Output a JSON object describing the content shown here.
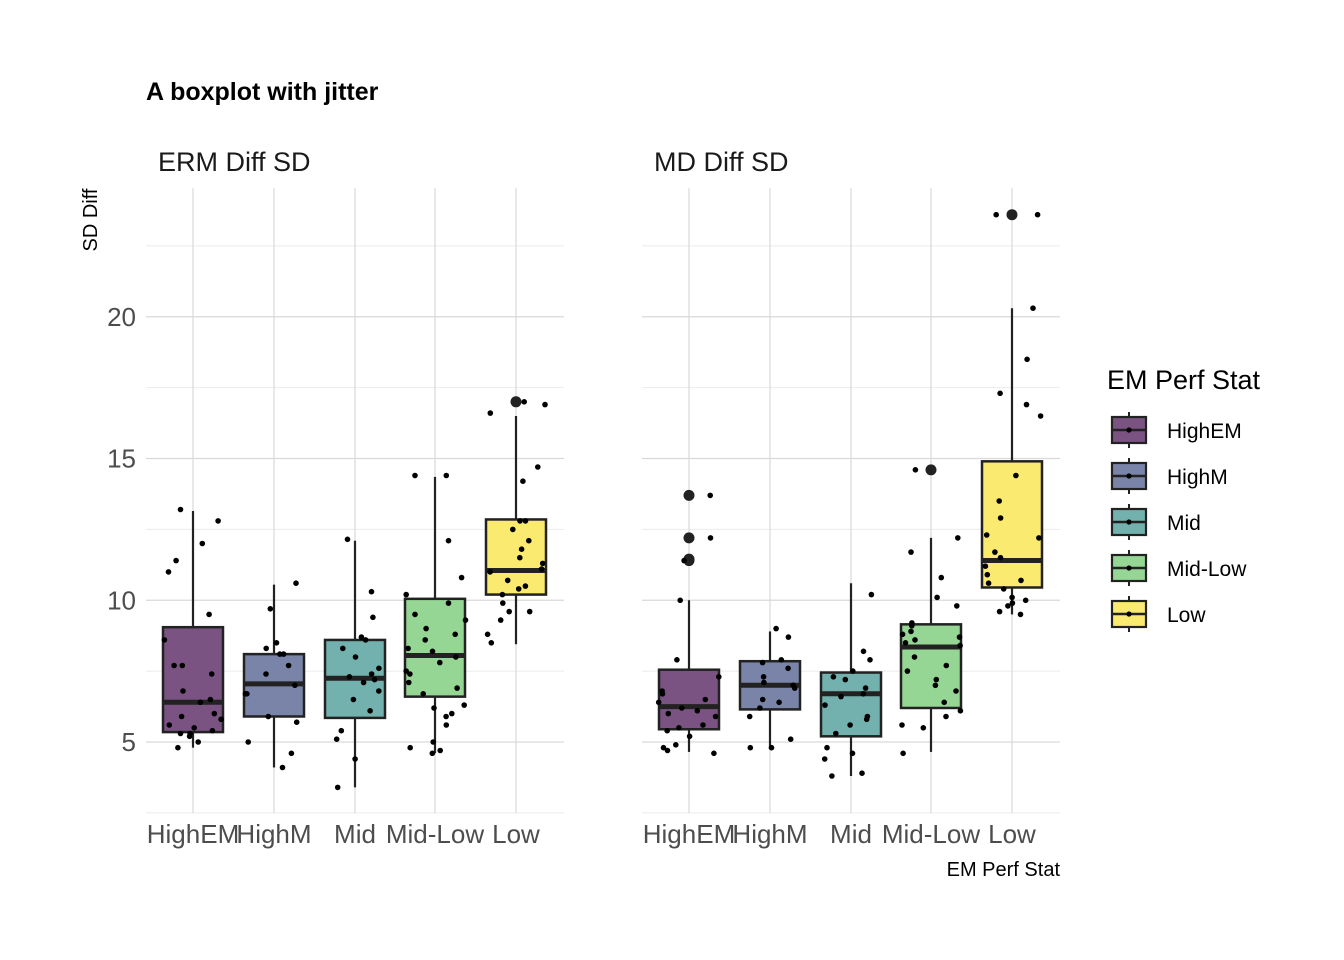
{
  "chart_data": {
    "type": "box",
    "title": "A boxplot with jitter",
    "xlabel": "EM Perf Stat",
    "ylabel": "SD Diff",
    "categories": [
      "HighEM",
      "HighM",
      "Mid",
      "Mid-Low",
      "Low"
    ],
    "y_ticks": [
      5,
      10,
      15,
      20
    ],
    "ylim": [
      2.5,
      24.6
    ],
    "grid": true,
    "legend": {
      "title": "EM Perf Stat",
      "position": "right",
      "items": [
        "HighEM",
        "HighM",
        "Mid",
        "Mid-Low",
        "Low"
      ]
    },
    "colors": {
      "HighEM": "#7A5383",
      "HighM": "#7A84A8",
      "Mid": "#72B1AD",
      "Mid-Low": "#96D695",
      "Low": "#FBEA70"
    },
    "panels": [
      {
        "strip_label": "ERM Diff SD",
        "boxes": [
          {
            "category": "HighEM",
            "lower_whisker": 4.8,
            "q1": 5.35,
            "median": 6.4,
            "q3": 9.05,
            "upper_whisker": 13.15,
            "outliers": []
          },
          {
            "category": "HighM",
            "lower_whisker": 4.1,
            "q1": 5.9,
            "median": 7.05,
            "q3": 8.1,
            "upper_whisker": 10.55,
            "outliers": []
          },
          {
            "category": "Mid",
            "lower_whisker": 3.4,
            "q1": 5.85,
            "median": 7.25,
            "q3": 8.6,
            "upper_whisker": 12.1,
            "outliers": []
          },
          {
            "category": "Mid-Low",
            "lower_whisker": 4.6,
            "q1": 6.6,
            "median": 8.05,
            "q3": 10.05,
            "upper_whisker": 14.35,
            "outliers": []
          },
          {
            "category": "Low",
            "lower_whisker": 8.45,
            "q1": 10.2,
            "median": 11.05,
            "q3": 12.85,
            "upper_whisker": 16.5,
            "outliers": [
              17.0
            ]
          }
        ],
        "jitter_points": [
          {
            "category": "HighEM",
            "values": [
              12.0,
              12.8,
              13.2,
              11.0,
              11.4,
              9.5,
              7.7,
              7.7,
              7.4,
              6.8,
              6.4,
              6.0,
              5.8,
              5.5,
              5.3,
              5.3,
              5.2,
              5.0,
              4.8,
              5.4,
              5.6,
              6.5,
              8.6,
              5.9
            ]
          },
          {
            "category": "HighM",
            "values": [
              9.7,
              8.5,
              8.1,
              8.1,
              7.7,
              7.4,
              7.0,
              6.7,
              6.7,
              5.9,
              5.7,
              5.0,
              4.6,
              4.1,
              10.6,
              8.3
            ]
          },
          {
            "category": "Mid",
            "values": [
              10.3,
              9.4,
              8.7,
              8.6,
              8.3,
              7.6,
              7.4,
              7.2,
              7.1,
              6.5,
              6.1,
              5.4,
              5.1,
              4.4,
              3.4,
              12.15,
              8.0,
              6.8,
              7.3
            ]
          },
          {
            "category": "Mid-Low",
            "values": [
              14.4,
              14.4,
              12.1,
              10.8,
              10.2,
              9.9,
              9.5,
              9.0,
              8.8,
              8.6,
              8.3,
              8.2,
              8.0,
              7.8,
              7.5,
              7.1,
              6.7,
              6.3,
              6.2,
              5.9,
              5.6,
              5.0,
              4.8,
              4.7,
              4.6,
              9.3,
              7.4,
              6.9,
              6.0
            ]
          },
          {
            "category": "Low",
            "values": [
              17.0,
              16.6,
              14.7,
              14.2,
              12.8,
              12.8,
              12.5,
              12.1,
              11.8,
              11.5,
              11.3,
              11.0,
              10.7,
              10.5,
              10.4,
              10.2,
              9.9,
              9.6,
              9.6,
              9.3,
              8.8,
              8.5,
              16.9,
              11.1
            ]
          }
        ]
      },
      {
        "strip_label": "MD Diff SD",
        "boxes": [
          {
            "category": "HighEM",
            "lower_whisker": 4.65,
            "q1": 5.45,
            "median": 6.25,
            "q3": 7.55,
            "upper_whisker": 10.0,
            "outliers": [
              13.7,
              12.2,
              11.45,
              11.4
            ]
          },
          {
            "category": "HighM",
            "lower_whisker": 4.75,
            "q1": 6.15,
            "median": 7.0,
            "q3": 7.85,
            "upper_whisker": 8.9,
            "outliers": []
          },
          {
            "category": "Mid",
            "lower_whisker": 3.8,
            "q1": 5.2,
            "median": 6.7,
            "q3": 7.45,
            "upper_whisker": 10.6,
            "outliers": []
          },
          {
            "category": "Mid-Low",
            "lower_whisker": 4.65,
            "q1": 6.2,
            "median": 8.35,
            "q3": 9.15,
            "upper_whisker": 12.2,
            "outliers": [
              14.6
            ]
          },
          {
            "category": "Low",
            "lower_whisker": 9.5,
            "q1": 10.45,
            "median": 11.4,
            "q3": 14.9,
            "upper_whisker": 20.3,
            "outliers": [
              23.6
            ]
          }
        ],
        "jitter_points": [
          {
            "category": "HighEM",
            "values": [
              13.7,
              12.2,
              11.4,
              10.0,
              7.9,
              7.3,
              6.8,
              6.5,
              6.4,
              6.2,
              6.1,
              5.9,
              5.6,
              5.5,
              5.4,
              5.2,
              4.9,
              4.8,
              4.7,
              4.6,
              6.0,
              6.7
            ]
          },
          {
            "category": "HighM",
            "values": [
              9.0,
              8.7,
              7.9,
              7.6,
              7.3,
              7.1,
              6.9,
              6.5,
              6.4,
              6.2,
              5.9,
              5.1,
              4.8,
              4.8,
              7.8,
              7.0
            ]
          },
          {
            "category": "Mid",
            "values": [
              10.2,
              8.2,
              7.9,
              7.5,
              7.3,
              6.9,
              6.7,
              6.6,
              6.3,
              5.8,
              5.6,
              5.3,
              4.8,
              4.4,
              3.9,
              3.8,
              4.6,
              5.9,
              7.2
            ]
          },
          {
            "category": "Mid-Low",
            "values": [
              14.6,
              12.2,
              11.7,
              10.8,
              10.1,
              9.8,
              9.1,
              8.9,
              8.8,
              8.6,
              8.5,
              8.4,
              8.0,
              7.7,
              7.5,
              7.2,
              7.0,
              6.8,
              6.4,
              6.1,
              5.9,
              5.6,
              5.5,
              4.6,
              8.7,
              9.2
            ]
          },
          {
            "category": "Low",
            "values": [
              23.6,
              23.6,
              20.3,
              18.5,
              17.3,
              16.9,
              16.5,
              14.4,
              13.5,
              12.9,
              12.3,
              12.2,
              11.7,
              11.5,
              11.2,
              10.9,
              10.7,
              10.6,
              10.4,
              10.1,
              9.9,
              9.8,
              9.6,
              9.5,
              10.0
            ]
          }
        ]
      }
    ]
  }
}
